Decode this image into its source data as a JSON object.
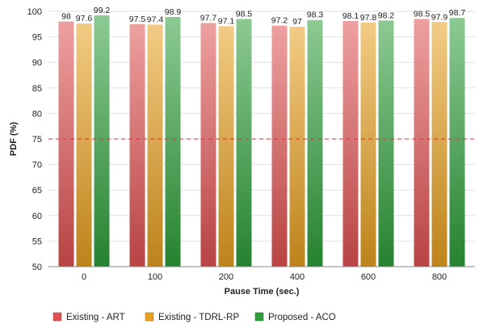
{
  "chart_data": {
    "type": "bar",
    "categories": [
      "0",
      "100",
      "200",
      "400",
      "600",
      "800"
    ],
    "series": [
      {
        "name": "Existing - ART",
        "values": [
          98,
          97.5,
          97.7,
          97.2,
          98.1,
          98.5
        ],
        "color": "#e05252"
      },
      {
        "name": "Existing - TDRL-RP",
        "values": [
          97.6,
          97.4,
          97.1,
          97,
          97.8,
          97.9
        ],
        "color": "#e8a020"
      },
      {
        "name": "Proposed - ACO",
        "values": [
          99.2,
          98.9,
          98.5,
          98.3,
          98.2,
          98.7
        ],
        "color": "#2e9e3a"
      }
    ],
    "title": "",
    "xlabel": "Pause Time (sec.)",
    "ylabel": "PDF (%)",
    "ylim": [
      50,
      100
    ],
    "yticks": [
      50,
      55,
      60,
      65,
      70,
      75,
      80,
      85,
      90,
      95,
      100
    ],
    "reference_line": {
      "value": 75,
      "color": "#e03030",
      "style": "dashed"
    },
    "grid": "horizontal",
    "legend_position": "bottom-left"
  }
}
